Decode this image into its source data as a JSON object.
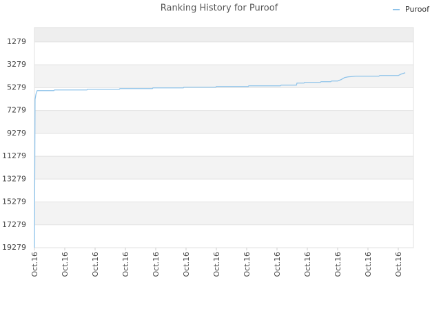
{
  "chart_data": {
    "type": "line",
    "title": "Ranking History for Puroof",
    "x": [
      0,
      0.02,
      0.05,
      0.09,
      0.64,
      0.66,
      1.73,
      1.75,
      2.8,
      2.82,
      3.89,
      3.91,
      4.91,
      4.93,
      5.98,
      6.0,
      7.05,
      7.07,
      8.11,
      8.14,
      8.64,
      8.66,
      8.89,
      8.91,
      9.43,
      9.45,
      9.77,
      9.8,
      10.0,
      10.11,
      10.23,
      10.34,
      10.59,
      11.36,
      11.39,
      12.0,
      12.09,
      12.23
    ],
    "series": [
      {
        "name": "Puroof",
        "color": "#8ec3ea",
        "values": [
          19279,
          6319,
          5839,
          5539,
          5539,
          5479,
          5479,
          5419,
          5419,
          5359,
          5359,
          5299,
          5299,
          5239,
          5239,
          5179,
          5179,
          5119,
          5119,
          5059,
          5059,
          4879,
          4879,
          4819,
          4819,
          4759,
          4759,
          4699,
          4699,
          4579,
          4399,
          4339,
          4279,
          4279,
          4219,
          4219,
          4099,
          3979
        ]
      }
    ],
    "xlim": [
      0,
      12.5
    ],
    "xticks": [
      {
        "value": 0,
        "label": "Oct.16"
      },
      {
        "value": 1,
        "label": "Oct.16"
      },
      {
        "value": 2,
        "label": "Oct.16"
      },
      {
        "value": 3,
        "label": "Oct.16"
      },
      {
        "value": 4,
        "label": "Oct.16"
      },
      {
        "value": 5,
        "label": "Oct.16"
      },
      {
        "value": 6,
        "label": "Oct.16"
      },
      {
        "value": 7,
        "label": "Oct.16"
      },
      {
        "value": 8,
        "label": "Oct.16"
      },
      {
        "value": 9,
        "label": "Oct.16"
      },
      {
        "value": 10,
        "label": "Oct.16"
      },
      {
        "value": 11,
        "label": "Oct.16"
      },
      {
        "value": 12,
        "label": "Oct.16"
      }
    ],
    "ylim": [
      19279,
      19
    ],
    "yticks": [
      1279,
      3279,
      5279,
      7279,
      9279,
      11279,
      13279,
      15279,
      17279,
      19279
    ],
    "grid": true,
    "legend": "top-right"
  }
}
